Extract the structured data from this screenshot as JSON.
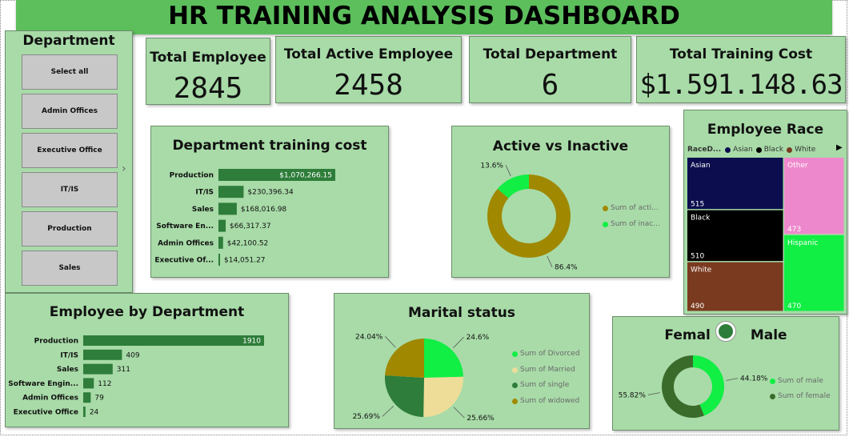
{
  "title": "HR TRAINING ANALYSIS DASHBOARD",
  "slicer": {
    "title": "Department",
    "items": [
      "Select all",
      "Admin Offices",
      "Executive Office",
      "IT/IS",
      "Production",
      "Sales"
    ]
  },
  "kpis": [
    {
      "label": "Total Employee",
      "value": "2845"
    },
    {
      "label": "Total Active Employee",
      "value": "2458"
    },
    {
      "label": "Total Department",
      "value": "6"
    },
    {
      "label": "Total Training Cost",
      "value": "$1.591.148.63"
    }
  ],
  "chart_data": [
    {
      "id": "dept_cost",
      "type": "bar",
      "title": "Department training cost",
      "categories": [
        "Production",
        "IT/IS",
        "Sales",
        "Software En...",
        "Admin Offices",
        "Executive Of..."
      ],
      "values": [
        1070266.15,
        230396.34,
        168016.98,
        66317.37,
        42100.52,
        14051.27
      ],
      "labels": [
        "$1,070,266.15",
        "$230,396.34",
        "$168,016.98",
        "$66,317.37",
        "$42,100.52",
        "$14,051.27"
      ],
      "color": "#2e7d3a"
    },
    {
      "id": "active",
      "type": "pie",
      "title": "Active vs Inactive",
      "series": [
        {
          "name": "Sum of acti...",
          "value": 86.4,
          "label": "86.4%",
          "color": "#a08800"
        },
        {
          "name": "Sum of inac...",
          "value": 13.6,
          "label": "13.6%",
          "color": "#11ee44"
        }
      ]
    },
    {
      "id": "race",
      "type": "heatmap",
      "title": "Employee Race",
      "legend_title": "RaceD...",
      "legend": [
        {
          "name": "Asian",
          "color": "#0b0d4e"
        },
        {
          "name": "Black",
          "color": "#000000"
        },
        {
          "name": "White",
          "color": "#7a3a1f"
        }
      ],
      "cells": [
        {
          "name": "Asian",
          "value": 515,
          "color": "#0b0d4e"
        },
        {
          "name": "Black",
          "value": 510,
          "color": "#000000"
        },
        {
          "name": "White",
          "value": 490,
          "color": "#7a3a1f"
        },
        {
          "name": "Other",
          "value": 473,
          "color": "#ee88cc"
        },
        {
          "name": "Hispanic",
          "value": 470,
          "color": "#11ee44"
        }
      ]
    },
    {
      "id": "emp_dept",
      "type": "bar",
      "title": "Employee by Department",
      "categories": [
        "Production",
        "IT/IS",
        "Sales",
        "Software Engin...",
        "Admin Offices",
        "Executive Office"
      ],
      "values": [
        1910,
        409,
        311,
        112,
        79,
        24
      ],
      "labels": [
        "1910",
        "409",
        "311",
        "112",
        "79",
        "24"
      ],
      "color": "#2e7d3a"
    },
    {
      "id": "marital",
      "type": "pie",
      "title": "Marital status",
      "series": [
        {
          "name": "Sum of Divorced",
          "value": 24.6,
          "label": "24.6%",
          "color": "#11ee44"
        },
        {
          "name": "Sum of Married",
          "value": 25.66,
          "label": "25.66%",
          "color": "#eedd99"
        },
        {
          "name": "Sum of single",
          "value": 25.69,
          "label": "25.69%",
          "color": "#2e7d3a"
        },
        {
          "name": "Sum of widowed",
          "value": 24.04,
          "label": "24.04%",
          "color": "#a08800"
        }
      ]
    },
    {
      "id": "gender",
      "type": "pie",
      "title": "Femal s Male",
      "series": [
        {
          "name": "Sum of male",
          "value": 44.18,
          "label": "44.18%",
          "color": "#11ee44"
        },
        {
          "name": "Sum of female",
          "value": 55.82,
          "label": "55.82%",
          "color": "#3b6b2a"
        }
      ]
    }
  ]
}
